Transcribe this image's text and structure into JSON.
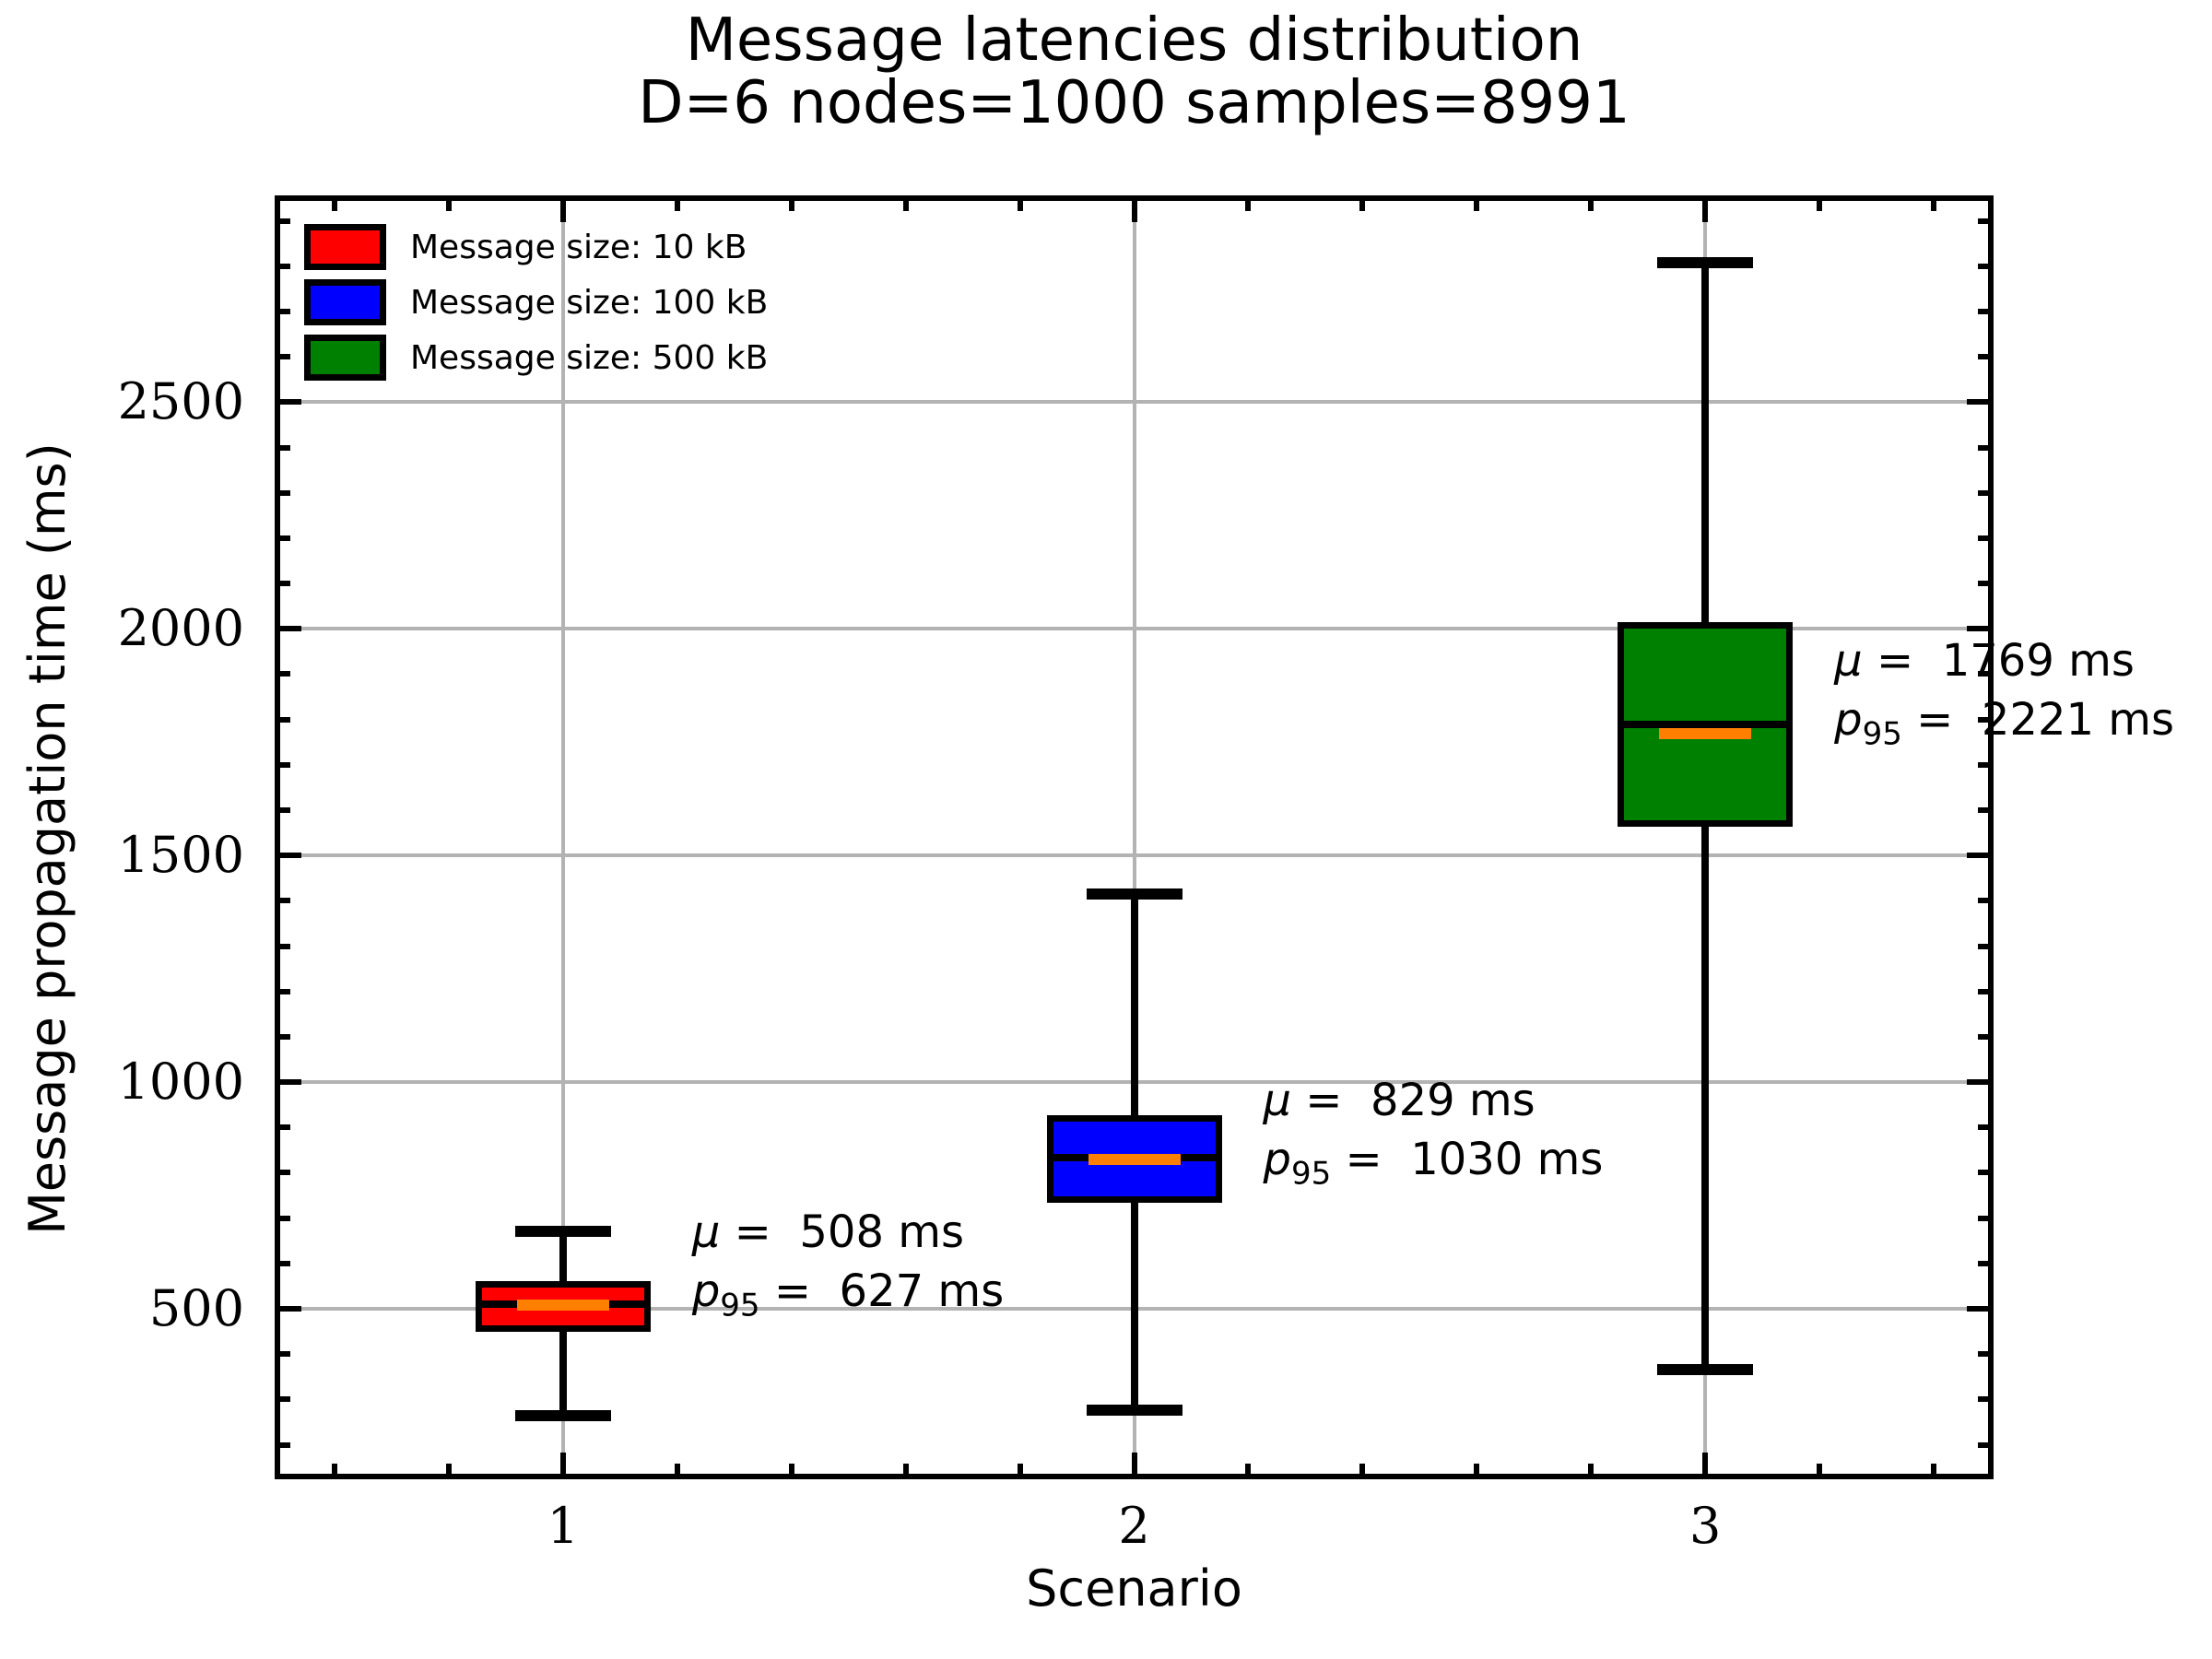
{
  "figure": {
    "title_line1": "Message latencies distribution",
    "title_line2": "D=6 nodes=1000 samples=8991"
  },
  "chart_data": {
    "type": "box",
    "title": "Message latencies distribution",
    "subtitle": "D=6 nodes=1000 samples=8991",
    "xlabel": "Scenario",
    "ylabel": "Message propagation time (ms)",
    "categories": [
      "1",
      "2",
      "3"
    ],
    "xlim": [
      0.5,
      3.5
    ],
    "ylim": [
      130,
      2950
    ],
    "y_major_ticks": [
      500,
      1000,
      1500,
      2000,
      2500
    ],
    "y_minor_step": 100,
    "x_minor_step": 0.2,
    "grid": true,
    "tick_direction": "in",
    "legend": {
      "position": "upper-left",
      "entries": [
        {
          "label": "Message size: 10 kB",
          "color": "#ff0000"
        },
        {
          "label": "Message size: 100 kB",
          "color": "#0000ff"
        },
        {
          "label": "Message size: 500 kB",
          "color": "#008000"
        }
      ]
    },
    "annotation_format": {
      "mu_symbol": "μ",
      "p95_symbol": "p",
      "p95_subscript": "95",
      "equals": "=",
      "unit": "ms"
    },
    "series": [
      {
        "scenario": "1",
        "color": "#ff0000",
        "whisker_low": 265,
        "q1": 455,
        "median": 510,
        "q3": 555,
        "whisker_high": 670,
        "mean": 508,
        "p95": 627,
        "annotation_anchor_ms": 668
      },
      {
        "scenario": "2",
        "color": "#0000ff",
        "whisker_low": 277,
        "q1": 740,
        "median": 833,
        "q3": 920,
        "whisker_high": 1415,
        "mean": 829,
        "p95": 1030,
        "annotation_anchor_ms": 960
      },
      {
        "scenario": "3",
        "color": "#008000",
        "whisker_low": 366,
        "q1": 1570,
        "median": 1790,
        "q3": 2008,
        "whisker_high": 2807,
        "mean": 1769,
        "p95": 2221,
        "annotation_anchor_ms": 1930
      }
    ],
    "style": {
      "median_line_color": "#000000",
      "mean_line_color": "#ff8000",
      "grid_color": "#b3b3b3",
      "axis_color": "#000000",
      "background": "#ffffff"
    }
  }
}
